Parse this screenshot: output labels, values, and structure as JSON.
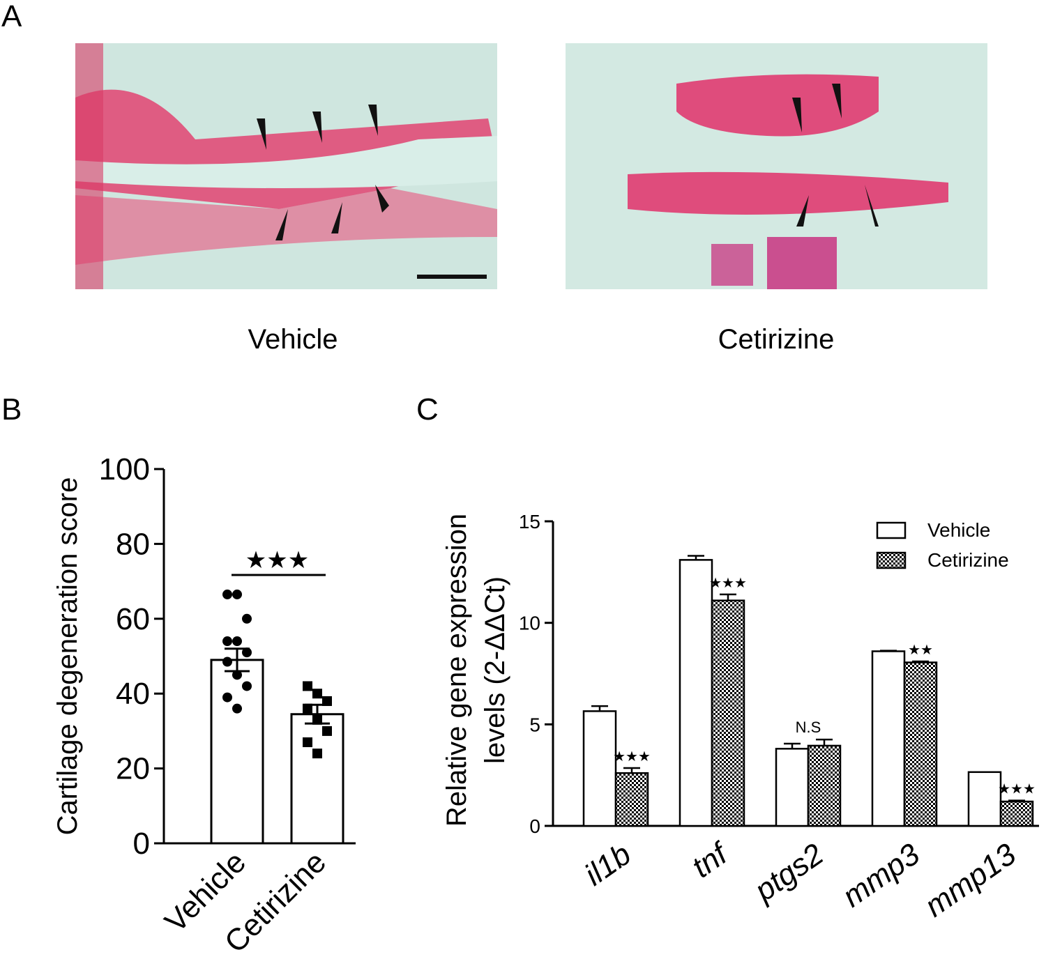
{
  "panel_labels": [
    "A",
    "B",
    "C"
  ],
  "images": [
    {
      "caption": "Vehicle"
    },
    {
      "caption": "Cetirizine"
    }
  ],
  "chart_data": [
    {
      "type": "bar",
      "ylabel": "Cartilage degeneration score",
      "categories": [
        "Vehicle",
        "Cetirizine"
      ],
      "values": [
        49,
        34.5
      ],
      "errors": [
        3,
        2.5
      ],
      "points": [
        [
          66.5,
          66.5,
          60,
          54,
          54,
          51,
          48.5,
          45,
          42,
          39,
          36
        ],
        [
          42,
          40,
          38,
          36,
          33,
          30,
          27,
          24
        ]
      ],
      "markers": [
        "circle",
        "square"
      ],
      "color": "#ffffff",
      "ylim": [
        0,
        100
      ],
      "yticks": [
        0,
        20,
        40,
        60,
        80,
        100
      ],
      "significance": "★★★"
    },
    {
      "type": "grouped_bar",
      "ylabel": [
        "Relative gene expression",
        "levels (2-ΔΔCt)"
      ],
      "categories": [
        "il1b",
        "tnf",
        "ptgs2",
        "mmp3",
        "mmp13"
      ],
      "series": [
        {
          "name": "Vehicle",
          "color": "#ffffff",
          "pattern": "none",
          "values": [
            5.65,
            13.1,
            3.8,
            8.6,
            2.65
          ],
          "errors": [
            0.25,
            0.2,
            0.25,
            0.03,
            0
          ]
        },
        {
          "name": "Cetirizine",
          "color": "#000000",
          "pattern": "checker",
          "values": [
            2.6,
            11.1,
            3.95,
            8.05,
            1.2
          ],
          "errors": [
            0.25,
            0.3,
            0.3,
            0.05,
            0.05
          ]
        }
      ],
      "annotations": [
        "★★★",
        "★★★",
        "N.S",
        "★★",
        "★★★"
      ],
      "ylim": [
        0,
        15
      ],
      "yticks": [
        0,
        5,
        10,
        15
      ],
      "legend": "upper right"
    }
  ]
}
